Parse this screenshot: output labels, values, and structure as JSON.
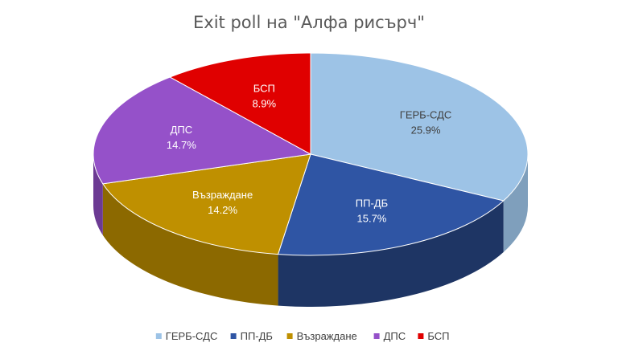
{
  "chart_data": {
    "type": "pie",
    "title": "Exit poll на \"Алфа рисърч\"",
    "legend_position": "bottom",
    "slices": [
      {
        "label": "ГЕРБ-СДС",
        "value": 25.9,
        "display": "25.9%",
        "color": "#9DC3E6",
        "side": "#7F9FBC"
      },
      {
        "label": "ПП-ДБ",
        "value": 15.7,
        "display": "15.7%",
        "color": "#2F55A4",
        "side": "#1E3564"
      },
      {
        "label": "Възраждане",
        "value": 14.2,
        "display": "14.2%",
        "color": "#BF9000",
        "side": "#8C6900"
      },
      {
        "label": "ДПС",
        "value": 14.7,
        "display": "14.7%",
        "color": "#9551C9",
        "side": "#6C3A93"
      },
      {
        "label": "БСП",
        "value": 8.9,
        "display": "8.9%",
        "color": "#E00000",
        "side": "#9E0000"
      }
    ]
  }
}
